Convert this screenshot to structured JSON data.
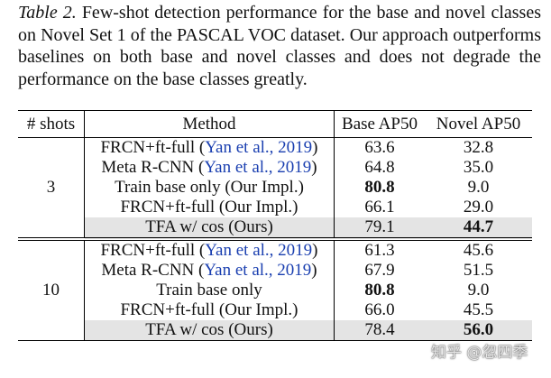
{
  "caption": {
    "label": "Table 2.",
    "text": "Few-shot detection performance for the base and novel classes on Novel Set 1 of the PASCAL VOC dataset. Our approach outperforms baselines on both base and novel classes and does not degrade the performance on the base classes greatly."
  },
  "table": {
    "header": [
      "# shots",
      "Method",
      "Base AP50",
      "Novel AP50"
    ],
    "groups": [
      {
        "shots": "3",
        "rows": [
          {
            "method": [
              "FRCN+ft-full (",
              "Yan et al., 2019",
              ")"
            ],
            "base": "63.6",
            "novel": "32.8"
          },
          {
            "method": [
              "Meta R-CNN (",
              "Yan et al., 2019",
              ")"
            ],
            "base": "64.8",
            "novel": "35.0"
          },
          {
            "method": [
              "Train base only (Our Impl.)"
            ],
            "base": "80.8",
            "novel": "9.0",
            "bold": "base"
          },
          {
            "method": [
              "FRCN+ft-full (Our Impl.)"
            ],
            "base": "66.1",
            "novel": "29.0"
          },
          {
            "method": [
              "TFA w/ cos (Ours)"
            ],
            "base": "79.1",
            "novel": "44.7",
            "bold": "novel",
            "shaded": true
          }
        ]
      },
      {
        "shots": "10",
        "rows": [
          {
            "method": [
              "FRCN+ft-full (",
              "Yan et al., 2019",
              ")"
            ],
            "base": "61.3",
            "novel": "45.6"
          },
          {
            "method": [
              "Meta R-CNN (",
              "Yan et al., 2019",
              ")"
            ],
            "base": "67.9",
            "novel": "51.5"
          },
          {
            "method": [
              "Train base only"
            ],
            "base": "80.8",
            "novel": "9.0",
            "bold": "base"
          },
          {
            "method": [
              "FRCN+ft-full (Our Impl.)"
            ],
            "base": "66.0",
            "novel": "45.5"
          },
          {
            "method": [
              "TFA w/ cos (Ours)"
            ],
            "base": "78.4",
            "novel": "56.0",
            "bold": "novel",
            "shaded": true
          }
        ]
      }
    ]
  },
  "watermark": "知乎 @忽四季"
}
